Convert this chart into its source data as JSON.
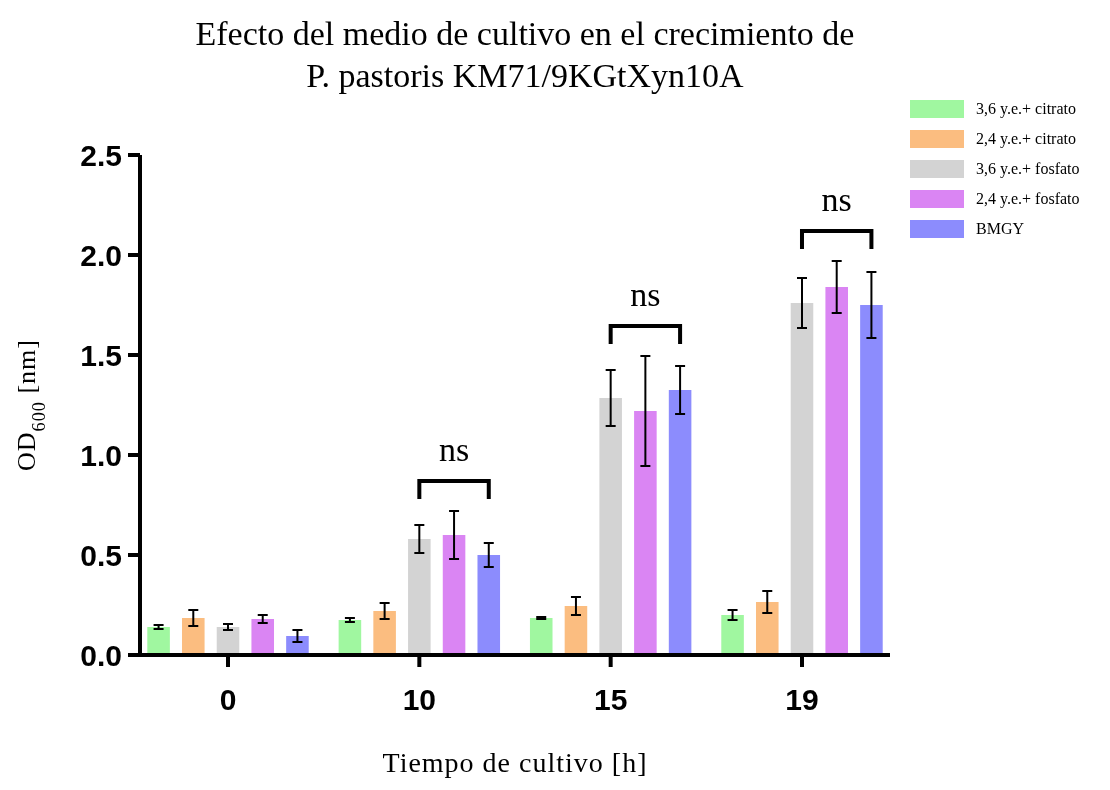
{
  "chart_data": {
    "type": "bar",
    "title": "Efecto del medio de cultivo en el crecimiento de P. pastoris KM71/9KGtXyn10A",
    "xlabel": "Tiempo de cultivo [h]",
    "ylabel": "OD$_{600}$ [nm]",
    "categories": [
      "0",
      "10",
      "15",
      "19"
    ],
    "series": [
      {
        "name": "3,6 y.e.+ citrato",
        "color": "#a0f7a0",
        "values": [
          0.14,
          0.175,
          0.185,
          0.2
        ],
        "errors": [
          0.01,
          0.01,
          0.005,
          0.025
        ]
      },
      {
        "name": "2,4 y.e.+ citrato",
        "color": "#fbbd80",
        "values": [
          0.185,
          0.22,
          0.245,
          0.265
        ],
        "errors": [
          0.04,
          0.04,
          0.045,
          0.055
        ]
      },
      {
        "name": "3,6 y.e.+ fosfato",
        "color": "#d3d3d3",
        "values": [
          0.14,
          0.58,
          1.285,
          1.76
        ],
        "errors": [
          0.015,
          0.07,
          0.14,
          0.125
        ]
      },
      {
        "name": "2,4 y.e.+ fosfato",
        "color": "#da85f3",
        "values": [
          0.18,
          0.6,
          1.22,
          1.84
        ],
        "errors": [
          0.02,
          0.12,
          0.275,
          0.13
        ]
      },
      {
        "name": "BMGY",
        "color": "#8c8cfd",
        "values": [
          0.095,
          0.5,
          1.325,
          1.75
        ],
        "errors": [
          0.03,
          0.06,
          0.12,
          0.165
        ]
      }
    ],
    "ylim": [
      0,
      2.5
    ],
    "yticks": [
      {
        "value": 0,
        "label": "0.0"
      },
      {
        "value": 0.5,
        "label": "0.5"
      },
      {
        "value": 1,
        "label": "1.0"
      },
      {
        "value": 1.5,
        "label": "1.5"
      },
      {
        "value": 2,
        "label": "2.0"
      },
      {
        "value": 2.5,
        "label": "2.5"
      }
    ],
    "legend": "top right",
    "grid": false,
    "annotations": [
      "ns",
      "ns",
      "ns"
    ]
  }
}
